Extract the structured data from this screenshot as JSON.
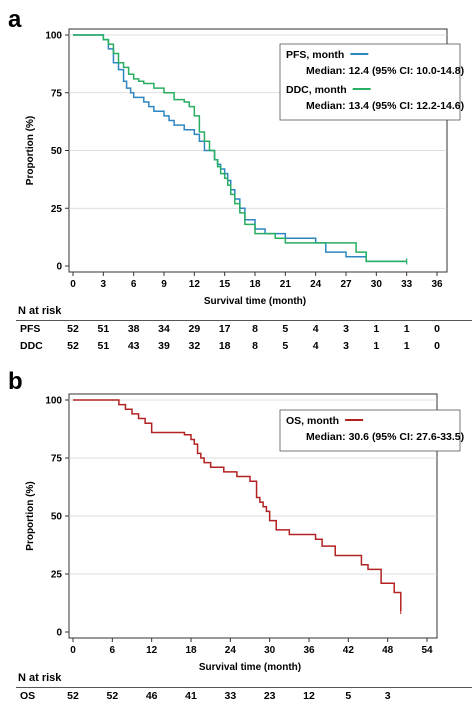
{
  "panel_a": {
    "label": "a",
    "legend": {
      "entries": [
        {
          "name": "PFS, month",
          "median": "Median: 12.4 (95% CI: 10.0-14.8)"
        },
        {
          "name": "DDC, month",
          "median": "Median: 13.4 (95% CI: 12.2-14.6)"
        }
      ]
    },
    "risk_table": {
      "title": "N at risk",
      "rows": [
        {
          "name": "PFS",
          "values": [
            "52",
            "51",
            "38",
            "34",
            "29",
            "17",
            "8",
            "5",
            "4",
            "3",
            "1",
            "1",
            "0"
          ]
        },
        {
          "name": "DDC",
          "values": [
            "52",
            "51",
            "43",
            "39",
            "32",
            "18",
            "8",
            "5",
            "4",
            "3",
            "1",
            "1",
            "0"
          ]
        }
      ]
    }
  },
  "panel_b": {
    "label": "b",
    "legend": {
      "entries": [
        {
          "name": "OS, month",
          "median": "Median: 30.6 (95% CI: 27.6-33.5)"
        }
      ]
    },
    "risk_table": {
      "title": "N at risk",
      "rows": [
        {
          "name": "OS",
          "values": [
            "52",
            "52",
            "46",
            "41",
            "33",
            "23",
            "12",
            "5",
            "3"
          ]
        }
      ]
    }
  },
  "chart_data": [
    {
      "type": "line",
      "subtype": "kaplan-meier",
      "xlabel": "Survival time (month)",
      "ylabel": "Proportion (%)",
      "xlim": [
        0,
        36
      ],
      "ylim": [
        0,
        100
      ],
      "xticks": [
        0,
        3,
        6,
        9,
        12,
        15,
        18,
        21,
        24,
        27,
        30,
        33,
        36
      ],
      "yticks": [
        0,
        25,
        50,
        75,
        100
      ],
      "legend_position": "top-right",
      "series": [
        {
          "name": "PFS, month",
          "color": "#2e86c1",
          "x": [
            0,
            2.5,
            3,
            3.5,
            4,
            4.5,
            5,
            5.3,
            5.7,
            6,
            7,
            7.5,
            8,
            9,
            9.5,
            10,
            11,
            12,
            12.5,
            13,
            14,
            14.3,
            14.6,
            15,
            15.3,
            15.6,
            16,
            16.5,
            17,
            18,
            19,
            21,
            24,
            25,
            27,
            29,
            33
          ],
          "y": [
            100,
            100,
            98,
            94,
            88,
            85,
            80,
            77,
            75,
            73,
            71,
            69,
            67,
            65,
            63,
            61,
            59,
            57,
            54,
            50,
            46,
            44,
            42,
            40,
            37,
            33,
            29,
            25,
            20,
            16,
            14,
            12,
            10,
            6,
            4,
            2,
            2
          ]
        },
        {
          "name": "DDC, month",
          "color": "#27ae60",
          "x": [
            0,
            2.5,
            3,
            3.5,
            4,
            4.5,
            5,
            5.5,
            6,
            6.5,
            7,
            8,
            9,
            10,
            11,
            11.5,
            12,
            12.5,
            13,
            13.5,
            14,
            14.3,
            14.6,
            15,
            15.3,
            15.6,
            16,
            16.5,
            17,
            18,
            20,
            21,
            24,
            28,
            29,
            33
          ],
          "y": [
            100,
            100,
            98,
            96,
            92,
            88,
            86,
            83,
            81,
            80,
            79,
            77,
            75,
            72,
            71,
            69,
            65,
            58,
            54,
            50,
            46,
            43,
            40,
            38,
            35,
            31,
            27,
            23,
            18,
            14,
            12,
            10,
            10,
            6,
            2,
            2
          ]
        }
      ]
    },
    {
      "type": "line",
      "subtype": "kaplan-meier",
      "xlabel": "Survival time (month)",
      "ylabel": "Proportion (%)",
      "xlim": [
        0,
        54
      ],
      "ylim": [
        0,
        100
      ],
      "xticks": [
        0,
        6,
        12,
        18,
        24,
        30,
        36,
        42,
        48,
        54
      ],
      "yticks": [
        0,
        25,
        50,
        75,
        100
      ],
      "legend_position": "top-right",
      "series": [
        {
          "name": "OS, month",
          "color": "#b22222",
          "x": [
            0,
            6,
            7,
            8,
            9,
            10,
            11,
            12,
            17,
            18,
            18.5,
            19,
            19.5,
            20,
            21,
            23,
            25,
            27,
            28,
            28.5,
            29,
            29.5,
            30,
            31,
            33,
            36,
            37,
            38,
            40,
            44,
            45,
            47,
            49,
            50
          ],
          "y": [
            100,
            100,
            98,
            96,
            94,
            92,
            90,
            86,
            85,
            83,
            81,
            77,
            75,
            73,
            71,
            69,
            67,
            65,
            58,
            56,
            54,
            52,
            48,
            44,
            42,
            42,
            40,
            37,
            33,
            29,
            27,
            21,
            17,
            9
          ]
        }
      ]
    }
  ]
}
